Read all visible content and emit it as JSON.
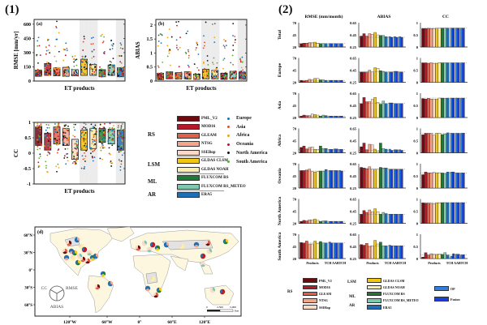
{
  "figure": {
    "panel1_label": "(1)",
    "panel2_label": "(2)"
  },
  "chart_data": [
    {
      "id": "a",
      "type": "scatter",
      "subtitle": "(a)",
      "title": "",
      "xlabel": "ET products",
      "ylabel": "RMSE [mm/yr]",
      "ylim": [
        0,
        650
      ],
      "yticks": [
        "0",
        "150",
        "300",
        "450",
        "600"
      ],
      "ytick_values": [
        0,
        150,
        300,
        450,
        600
      ],
      "categories": [
        "PML_V2",
        "MOD16",
        "GLEAM",
        "NTSG",
        "SSEBop",
        "GLDAS CLSM",
        "GLDAS NOAH",
        "FLUXCOM RS",
        "FLUXCOM RS_METEO",
        "ERA5"
      ],
      "box_q1": [
        50,
        60,
        55,
        50,
        55,
        60,
        60,
        45,
        60,
        45
      ],
      "box_q3": [
        115,
        185,
        140,
        145,
        120,
        230,
        175,
        120,
        170,
        140
      ],
      "box_colors": [
        "#6b0b10",
        "#b5172b",
        "#e0604a",
        "#f4a58a",
        "#fbd9c9",
        "#f2c714",
        "#fcefae",
        "#1b7b34",
        "#80c7b0",
        "#1f6fb5"
      ],
      "max_outlier": [
        460,
        440,
        630,
        400,
        265,
        470,
        460,
        490,
        430,
        400
      ],
      "shaded_categories": [
        5,
        6,
        9
      ],
      "grid": false
    },
    {
      "id": "b",
      "type": "scatter",
      "subtitle": "(b)",
      "xlabel": "ET products",
      "ylabel": "ABIAS",
      "ylim": [
        0,
        2.2
      ],
      "yticks": [
        "0",
        "0.5",
        "1",
        "1.5",
        "2"
      ],
      "ytick_values": [
        0,
        0.5,
        1,
        1.5,
        2
      ],
      "categories": [
        "PML_V2",
        "MOD16",
        "GLEAM",
        "NTSG",
        "SSEBop",
        "GLDAS CLSM",
        "GLDAS NOAH",
        "FLUXCOM RS",
        "FLUXCOM RS_METEO",
        "ERA5"
      ],
      "box_q1": [
        0.05,
        0.08,
        0.07,
        0.07,
        0.06,
        0.08,
        0.08,
        0.06,
        0.07,
        0.06
      ],
      "box_q3": [
        0.28,
        0.33,
        0.3,
        0.33,
        0.25,
        0.42,
        0.38,
        0.28,
        0.35,
        0.32
      ],
      "max_outlier": [
        1.68,
        1.85,
        2.12,
        1.78,
        1.38,
        2.1,
        2.05,
        1.48,
        2.05,
        0.85
      ],
      "shaded_categories": [
        5,
        6,
        9
      ]
    },
    {
      "id": "c",
      "type": "scatter",
      "subtitle": "(c)",
      "xlabel": "ET products",
      "ylabel": "CC",
      "ylim": [
        -1,
        1
      ],
      "yticks": [
        "-1",
        "-0.5",
        "0",
        "0.5",
        "1"
      ],
      "ytick_values": [
        -1,
        -0.5,
        0,
        0.5,
        1
      ],
      "categories": [
        "PML_V2",
        "MOD16",
        "GLEAM",
        "NTSG",
        "SSEBop",
        "GLDAS CLSM",
        "GLDAS NOAH",
        "FLUXCOM RS",
        "FLUXCOM RS_METEO",
        "ERA5"
      ],
      "box_q1": [
        0.25,
        0.1,
        0.3,
        0.25,
        -0.2,
        0.1,
        0.15,
        0.35,
        0.3,
        0.1
      ],
      "box_q3": [
        0.85,
        0.65,
        0.85,
        0.8,
        0.45,
        0.75,
        0.8,
        0.8,
        0.78,
        0.75
      ],
      "min_outlier": [
        -0.45,
        -0.62,
        -0.6,
        -0.35,
        -0.35,
        -0.5,
        -0.25,
        -0.2,
        -0.42,
        -0.55
      ],
      "shaded_categories": [
        5,
        6,
        9
      ]
    },
    {
      "id": "2",
      "type": "bar",
      "metrics": [
        {
          "name": "RMSE (mm/month)",
          "ylim": [
            20,
            70
          ],
          "yticks": [
            "20",
            "45",
            "70"
          ]
        },
        {
          "name": "ABIAS",
          "ylim": [
            0.25,
            0.65
          ],
          "yticks": [
            "0.25",
            "0.45",
            "0.65"
          ]
        },
        {
          "name": "CC",
          "ylim": [
            0,
            1
          ],
          "yticks": [
            "0",
            "0.5",
            "1"
          ]
        }
      ],
      "regions": [
        "Total",
        "Europe",
        "Asia",
        "Africa",
        "Oceania",
        "North America",
        "South America"
      ],
      "group_labels": [
        "Products",
        "TCH AABTCH"
      ],
      "categories": [
        "PML_V2",
        "MOD16",
        "GLEAM",
        "NTSG",
        "SSEBop",
        "GLDAS CLSM",
        "GLDAS NOAH",
        "FLUXCOM RS",
        "FLUXCOM RS_METEO",
        "ERA5",
        "OP",
        "Fusion",
        "OP",
        "Fusion",
        "OP",
        "Fusion"
      ],
      "bar_colors": [
        "#6b0b10",
        "#b5172b",
        "#e0604a",
        "#f4a58a",
        "#fbd9c9",
        "#f2c714",
        "#fcefae",
        "#1b7b34",
        "#80c7b0",
        "#1f6fb5",
        "#2e7fe0",
        "#1d3fd6",
        "#2e7fe0",
        "#1d3fd6",
        "#2e7fe0",
        "#1d3fd6"
      ],
      "values": {
        "RMSE (mm/month)": {
          "Total": [
            27,
            28,
            28,
            29,
            29,
            30,
            28,
            27,
            27,
            27,
            27,
            27,
            27,
            27,
            27,
            27
          ],
          "Europe": [
            24,
            23,
            24,
            26,
            25,
            28,
            28,
            25,
            25,
            24,
            24,
            24,
            24,
            24,
            24,
            24
          ],
          "Asia": [
            23,
            25,
            24,
            24,
            27,
            26,
            25,
            23,
            25,
            24,
            23,
            23,
            23,
            23,
            23,
            23
          ],
          "Africa": [
            31,
            34,
            28,
            31,
            32,
            27,
            26,
            34,
            29,
            29,
            27,
            27,
            28,
            28,
            27,
            27
          ],
          "Oceania": [
            56,
            56,
            57,
            59,
            54,
            53,
            54,
            55,
            55,
            58,
            56,
            56,
            56,
            56,
            56,
            55
          ],
          "North America": [
            24,
            26,
            25,
            27,
            27,
            29,
            26,
            24,
            25,
            25,
            24,
            24,
            24,
            24,
            24,
            24
          ],
          "South America": [
            53,
            52,
            56,
            50,
            50,
            56,
            51,
            55,
            52,
            52,
            54,
            52,
            52,
            52,
            52,
            52
          ]
        },
        "ABIAS": {
          "Total": [
            0.43,
            0.47,
            0.43,
            0.47,
            0.46,
            0.49,
            0.45,
            0.44,
            0.44,
            0.42,
            0.42,
            0.41,
            0.42,
            0.41,
            0.42,
            0.41
          ],
          "Europe": [
            0.42,
            0.42,
            0.42,
            0.45,
            0.42,
            0.49,
            0.48,
            0.44,
            0.43,
            0.42,
            0.42,
            0.42,
            0.43,
            0.43,
            0.42,
            0.42
          ],
          "Asia": [
            0.48,
            0.58,
            0.51,
            0.51,
            0.55,
            0.58,
            0.5,
            0.47,
            0.52,
            0.48,
            0.49,
            0.49,
            0.48,
            0.48,
            0.48,
            0.48
          ],
          "Africa": [
            0.35,
            0.41,
            0.3,
            0.39,
            0.38,
            0.31,
            0.28,
            0.41,
            0.32,
            0.31,
            0.31,
            0.29,
            0.3,
            0.3,
            0.3,
            0.29
          ],
          "Oceania": [
            0.59,
            0.58,
            0.57,
            0.6,
            0.56,
            0.56,
            0.56,
            0.59,
            0.58,
            0.58,
            0.56,
            0.56,
            0.56,
            0.56,
            0.56,
            0.56
          ],
          "North America": [
            0.4,
            0.46,
            0.43,
            0.47,
            0.44,
            0.49,
            0.44,
            0.4,
            0.43,
            0.41,
            0.4,
            0.4,
            0.4,
            0.4,
            0.4,
            0.4
          ],
          "South America": [
            0.48,
            0.47,
            0.5,
            0.45,
            0.46,
            0.55,
            0.49,
            0.52,
            0.46,
            0.46,
            0.47,
            0.46,
            0.46,
            0.46,
            0.46,
            0.46
          ]
        },
        "CC": {
          "Total": [
            0.76,
            0.76,
            0.77,
            0.76,
            0.76,
            0.77,
            0.77,
            0.78,
            0.78,
            0.78,
            0.78,
            0.78,
            0.78,
            0.78,
            0.78,
            0.78
          ],
          "Europe": [
            0.8,
            0.8,
            0.78,
            0.8,
            0.77,
            0.78,
            0.8,
            0.8,
            0.8,
            0.8,
            0.8,
            0.8,
            0.8,
            0.8,
            0.8,
            0.8
          ],
          "Asia": [
            0.78,
            0.76,
            0.79,
            0.76,
            0.75,
            0.76,
            0.8,
            0.8,
            0.79,
            0.8,
            0.8,
            0.8,
            0.8,
            0.8,
            0.8,
            0.8
          ],
          "Africa": [
            0.74,
            0.8,
            0.8,
            0.79,
            0.73,
            0.8,
            0.8,
            0.75,
            0.78,
            0.82,
            0.8,
            0.8,
            0.8,
            0.8,
            0.8,
            0.81
          ],
          "Oceania": [
            0.55,
            0.66,
            0.62,
            0.63,
            0.64,
            0.63,
            0.63,
            0.62,
            0.6,
            0.66,
            0.66,
            0.66,
            0.62,
            0.62,
            0.62,
            0.62
          ],
          "North America": [
            0.84,
            0.83,
            0.83,
            0.82,
            0.81,
            0.84,
            0.84,
            0.85,
            0.85,
            0.85,
            0.85,
            0.85,
            0.85,
            0.85,
            0.85,
            0.85
          ],
          "South America": [
            0.06,
            0.24,
            0.14,
            0.2,
            0.18,
            0.17,
            0.19,
            0.17,
            0.24,
            0.14,
            0.1,
            0.2,
            0.18,
            0.18,
            0.15,
            0.16
          ]
        }
      },
      "reference_line_dashed": true
    }
  ],
  "legend1": {
    "groups": [
      {
        "label": "RS",
        "items": [
          {
            "name": "PML_V2",
            "color": "#6b0b10"
          },
          {
            "name": "MOD16",
            "color": "#b5172b"
          },
          {
            "name": "GLEAM",
            "color": "#e0604a"
          },
          {
            "name": "NTSG",
            "color": "#f4a58a"
          },
          {
            "name": "SSEBop",
            "color": "#fbd9c9"
          }
        ]
      },
      {
        "label": "LSM",
        "items": [
          {
            "name": "GLDAS CLSM",
            "color": "#f2c714"
          },
          {
            "name": "GLDAS NOAH",
            "color": "#fcefae"
          }
        ]
      },
      {
        "label": "ML",
        "items": [
          {
            "name": "FLUXCOM RS",
            "color": "#1b7b34"
          },
          {
            "name": "FLUXCOM RS_METEO",
            "color": "#80c7b0"
          }
        ]
      },
      {
        "label": "AR",
        "items": [
          {
            "name": "ERA5",
            "color": "#1f6fb5"
          }
        ]
      }
    ],
    "regions": [
      {
        "name": "Europe",
        "color": "#1f6fb5"
      },
      {
        "name": "Asia",
        "color": "#e0502a"
      },
      {
        "name": "Africa",
        "color": "#f2a214"
      },
      {
        "name": "Oceania",
        "color": "#b5172b"
      },
      {
        "name": "North America",
        "color": "#111111"
      },
      {
        "name": "South America",
        "color": "#5bb033"
      }
    ]
  },
  "legend2": {
    "groups": [
      {
        "label": "RS",
        "items": [
          {
            "name": "PML_V2",
            "color": "#6b0b10"
          },
          {
            "name": "MOD16",
            "color": "#b5172b"
          },
          {
            "name": "GLEAM",
            "color": "#e0604a"
          },
          {
            "name": "NTSG",
            "color": "#f4a58a"
          },
          {
            "name": "SSEBop",
            "color": "#fbd9c9"
          }
        ]
      },
      {
        "label": "LSM",
        "items": [
          {
            "name": "GLDAS CLSM",
            "color": "#f2c714"
          },
          {
            "name": "GLDAS NOAH",
            "color": "#fcefae"
          }
        ]
      },
      {
        "label": "ML",
        "items": [
          {
            "name": "FLUXCOM RS",
            "color": "#1b7b34"
          },
          {
            "name": "FLUXCOM RS_METEO",
            "color": "#80c7b0"
          }
        ]
      },
      {
        "label": "AR",
        "items": [
          {
            "name": "ERA5",
            "color": "#1f6fb5"
          }
        ]
      }
    ],
    "extra": [
      {
        "name": "OP",
        "color": "#2e7fe0"
      },
      {
        "name": "Fusion",
        "color": "#1d3fd6"
      }
    ]
  },
  "map": {
    "subtitle": "(d)",
    "lat_ticks": [
      "60°N",
      "30°N",
      "0°",
      "30°S",
      "60°S"
    ],
    "lon_ticks": [
      "120°W",
      "60°W",
      "0°",
      "60°E",
      "120°E"
    ],
    "pie_legend": {
      "left": "CC",
      "right": "RMSE",
      "bottom": "ABIAS"
    },
    "scale": {
      "labels": [
        "0",
        "2,500",
        "5,000"
      ],
      "unit": "Km"
    }
  }
}
